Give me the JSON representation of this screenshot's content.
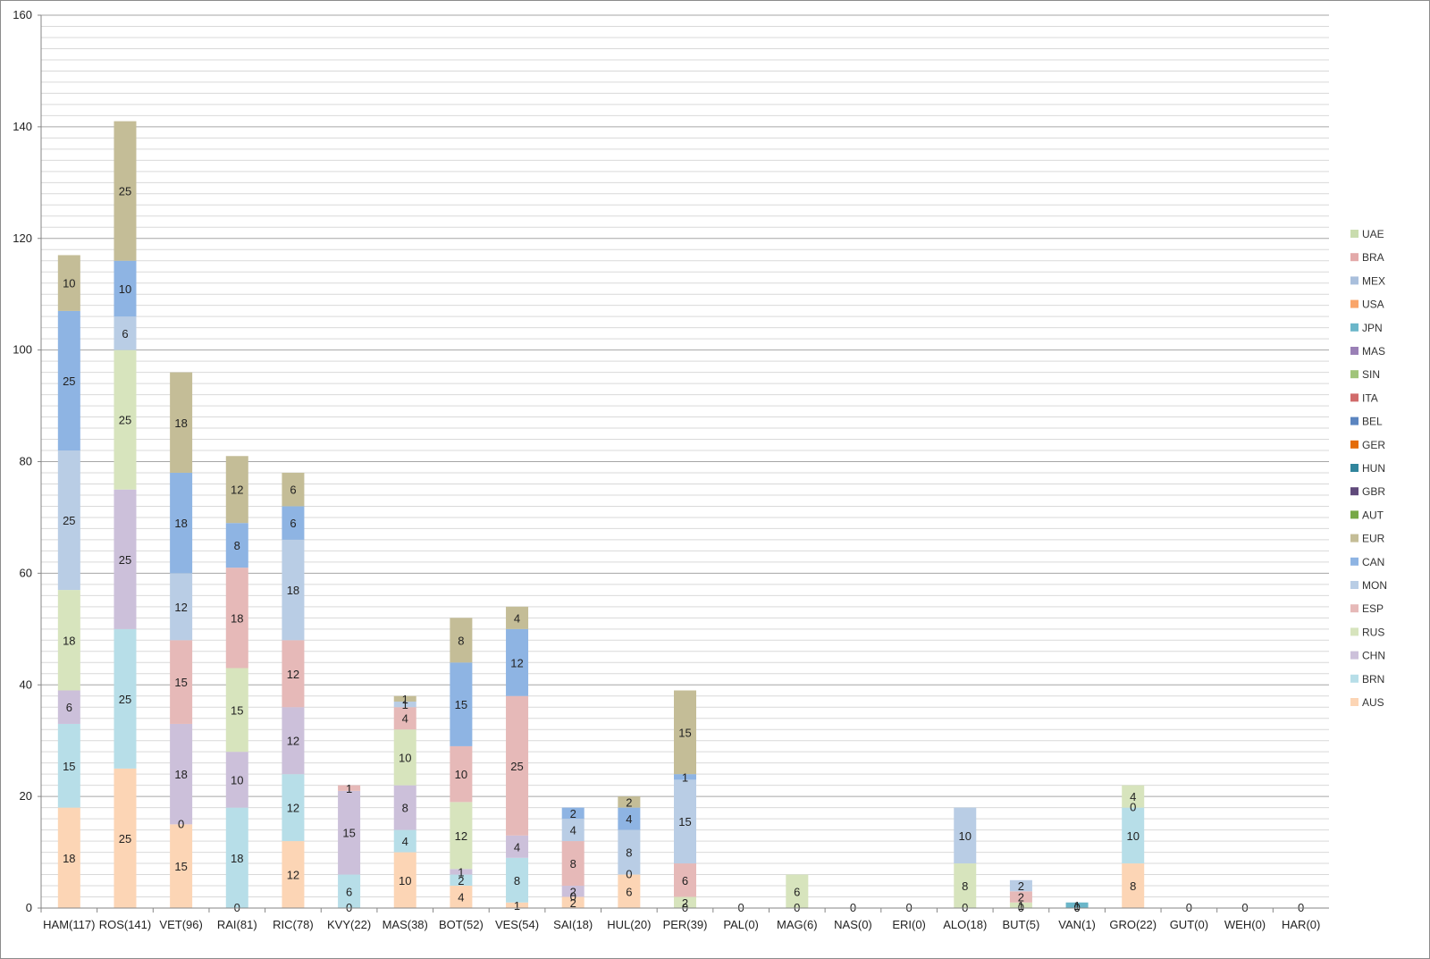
{
  "chart_data": {
    "type": "bar",
    "stacked": true,
    "title": "",
    "xlabel": "",
    "ylabel": "",
    "ylim": [
      0,
      160
    ],
    "y_ticks": [
      0,
      20,
      40,
      60,
      80,
      100,
      120,
      140,
      160
    ],
    "grid": true,
    "legend_position": "right",
    "categories": [
      "HAM(117)",
      "ROS(141)",
      "VET(96)",
      "RAI(81)",
      "RIC(78)",
      "KVY(22)",
      "MAS(38)",
      "BOT(52)",
      "VES(54)",
      "SAI(18)",
      "HUL(20)",
      "PER(39)",
      "PAL(0)",
      "MAG(6)",
      "NAS(0)",
      "ERI(0)",
      "ALO(18)",
      "BUT(5)",
      "VAN(1)",
      "GRO(22)",
      "GUT(0)",
      "WEH(0)",
      "HAR(0)"
    ],
    "series": [
      {
        "name": "AUS",
        "color": "#fcd5b5",
        "values": [
          18,
          25,
          15,
          0,
          12,
          0,
          10,
          4,
          1,
          2,
          6,
          0,
          0,
          0,
          0,
          0,
          0,
          0,
          0,
          8,
          0,
          0,
          0
        ]
      },
      {
        "name": "BRN",
        "color": "#b7dee8",
        "values": [
          15,
          25,
          0,
          18,
          12,
          6,
          4,
          2,
          8,
          0,
          0,
          0,
          0,
          0,
          0,
          0,
          0,
          0,
          0,
          10,
          0,
          0,
          0
        ]
      },
      {
        "name": "CHN",
        "color": "#ccc0da",
        "values": [
          6,
          25,
          18,
          10,
          12,
          15,
          8,
          1,
          4,
          2,
          0,
          0,
          0,
          0,
          0,
          0,
          0,
          0,
          0,
          0,
          0,
          0,
          0
        ]
      },
      {
        "name": "RUS",
        "color": "#d7e4bd",
        "values": [
          18,
          25,
          0,
          15,
          0,
          0,
          10,
          12,
          0,
          0,
          0,
          2,
          0,
          6,
          0,
          0,
          8,
          1,
          0,
          0,
          0,
          0,
          0
        ]
      },
      {
        "name": "ESP",
        "color": "#e6b9b8",
        "values": [
          0,
          0,
          15,
          18,
          12,
          1,
          4,
          10,
          25,
          8,
          0,
          6,
          0,
          0,
          0,
          0,
          0,
          2,
          0,
          0,
          0,
          0,
          0
        ]
      },
      {
        "name": "MON",
        "color": "#b9cde5",
        "values": [
          25,
          6,
          12,
          0,
          18,
          0,
          1,
          0,
          0,
          4,
          8,
          15,
          0,
          0,
          0,
          0,
          10,
          2,
          0,
          0,
          0,
          0,
          0
        ]
      },
      {
        "name": "CAN",
        "color": "#8eb4e3",
        "values": [
          25,
          10,
          18,
          8,
          6,
          0,
          0,
          15,
          12,
          2,
          4,
          1,
          0,
          0,
          0,
          0,
          0,
          0,
          0,
          0,
          0,
          0,
          0
        ]
      },
      {
        "name": "EUR",
        "color": "#c4bd97",
        "values": [
          10,
          25,
          18,
          12,
          6,
          0,
          1,
          8,
          4,
          0,
          2,
          15,
          0,
          0,
          0,
          0,
          0,
          0,
          0,
          0,
          0,
          0,
          0
        ]
      },
      {
        "name": "AUT",
        "color": "#77a846",
        "values": [
          0,
          0,
          0,
          0,
          0,
          0,
          0,
          0,
          0,
          0,
          0,
          0,
          0,
          0,
          0,
          0,
          0,
          0,
          0,
          0,
          0,
          0,
          0
        ]
      },
      {
        "name": "GBR",
        "color": "#604a7b",
        "values": [
          0,
          0,
          0,
          0,
          0,
          0,
          0,
          0,
          0,
          0,
          0,
          0,
          0,
          0,
          0,
          0,
          0,
          0,
          0,
          0,
          0,
          0,
          0
        ]
      },
      {
        "name": "HUN",
        "color": "#31859c",
        "values": [
          0,
          0,
          0,
          0,
          0,
          0,
          0,
          0,
          0,
          0,
          0,
          0,
          0,
          0,
          0,
          0,
          0,
          0,
          0,
          0,
          0,
          0,
          0
        ]
      },
      {
        "name": "GER",
        "color": "#e46c0a",
        "values": [
          0,
          0,
          0,
          0,
          0,
          0,
          0,
          0,
          0,
          0,
          0,
          0,
          0,
          0,
          0,
          0,
          0,
          0,
          0,
          0,
          0,
          0,
          0
        ]
      },
      {
        "name": "BEL",
        "color": "#5b85c0",
        "values": [
          0,
          0,
          0,
          0,
          0,
          0,
          0,
          0,
          0,
          0,
          0,
          0,
          0,
          0,
          0,
          0,
          0,
          0,
          0,
          0,
          0,
          0,
          0
        ]
      },
      {
        "name": "ITA",
        "color": "#d16b6b",
        "values": [
          0,
          0,
          0,
          0,
          0,
          0,
          0,
          0,
          0,
          0,
          0,
          0,
          0,
          0,
          0,
          0,
          0,
          0,
          0,
          0,
          0,
          0,
          0
        ]
      },
      {
        "name": "SIN",
        "color": "#a0c47a",
        "values": [
          0,
          0,
          0,
          0,
          0,
          0,
          0,
          0,
          0,
          0,
          0,
          0,
          0,
          0,
          0,
          0,
          0,
          0,
          0,
          0,
          0,
          0,
          0
        ]
      },
      {
        "name": "MAS",
        "color": "#9a80b6",
        "values": [
          0,
          0,
          0,
          0,
          0,
          0,
          0,
          0,
          0,
          0,
          0,
          0,
          0,
          0,
          0,
          0,
          0,
          0,
          0,
          0,
          0,
          0,
          0
        ]
      },
      {
        "name": "JPN",
        "color": "#6bb6c9",
        "values": [
          0,
          0,
          0,
          0,
          0,
          0,
          0,
          0,
          0,
          0,
          0,
          0,
          0,
          0,
          0,
          0,
          0,
          0,
          0,
          0,
          0,
          0,
          0
        ]
      },
      {
        "name": "USA",
        "color": "#f9a56a",
        "values": [
          0,
          0,
          0,
          0,
          0,
          0,
          0,
          0,
          0,
          0,
          0,
          0,
          0,
          0,
          0,
          0,
          0,
          0,
          0,
          0,
          0,
          0,
          0
        ]
      },
      {
        "name": "MEX",
        "color": "#a9bfdc",
        "values": [
          0,
          0,
          0,
          0,
          0,
          0,
          0,
          0,
          0,
          0,
          0,
          0,
          0,
          0,
          0,
          0,
          0,
          0,
          0,
          0,
          0,
          0,
          0
        ]
      },
      {
        "name": "BRA",
        "color": "#e3a9a9",
        "values": [
          0,
          0,
          0,
          0,
          0,
          0,
          0,
          0,
          0,
          0,
          0,
          0,
          0,
          0,
          0,
          0,
          0,
          0,
          0,
          0,
          0,
          0,
          0
        ]
      },
      {
        "name": "UAE",
        "color": "#c9dcae",
        "values": [
          0,
          0,
          0,
          0,
          0,
          0,
          0,
          0,
          0,
          0,
          0,
          0,
          0,
          0,
          0,
          0,
          0,
          0,
          0,
          0,
          0,
          0,
          0
        ]
      }
    ],
    "extra_zero_labels": [
      {
        "category": "ROS(141)",
        "series": "MON",
        "value": 6
      },
      {
        "category": "VET(96)",
        "series": "BRN",
        "value": 0
      },
      {
        "category": "RAI(81)",
        "series": "AUS",
        "value": 0
      },
      {
        "category": "KVY(22)",
        "series": "AUS",
        "value": 0
      },
      {
        "category": "SAI(18)",
        "series": "BRN",
        "value": 0
      },
      {
        "category": "HUL(20)",
        "series": "BRN",
        "value": 0
      },
      {
        "category": "PER(39)",
        "series": "AUS",
        "value": 0
      },
      {
        "category": "PAL(0)",
        "series": "AUS",
        "value": 0
      },
      {
        "category": "MAG(6)",
        "series": "AUS",
        "value": 0
      },
      {
        "category": "NAS(0)",
        "series": "AUS",
        "value": 0
      },
      {
        "category": "ERI(0)",
        "series": "AUS",
        "value": 0
      },
      {
        "category": "ALO(18)",
        "series": "AUS",
        "value": 0
      },
      {
        "category": "BUT(5)",
        "series": "AUS",
        "value": 0
      },
      {
        "category": "VAN(1)",
        "series": "AUS",
        "value": 0
      },
      {
        "category": "VAN(1)",
        "series": "BRN",
        "value": 0
      },
      {
        "category": "GRO(22)",
        "series": "CHN",
        "value": 0
      },
      {
        "category": "GUT(0)",
        "series": "AUS",
        "value": 0
      },
      {
        "category": "WEH(0)",
        "series": "AUS",
        "value": 0
      },
      {
        "category": "HAR(0)",
        "series": "AUS",
        "value": 0
      }
    ],
    "extra_segments": [
      {
        "category": "VAN(1)",
        "series": "JPN",
        "value": 1
      },
      {
        "category": "GRO(22)",
        "series": "RUS",
        "value": 4
      }
    ]
  }
}
